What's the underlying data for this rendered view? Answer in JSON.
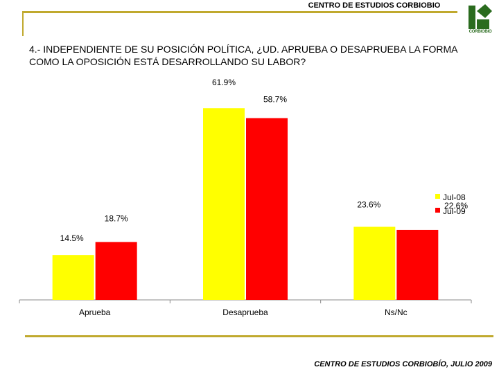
{
  "header": {
    "title": "CENTRO DE ESTUDIOS CORBIOBIO",
    "logo_text": "CORBIOBIO",
    "question": "4.- INDEPENDIENTE DE SU POSICIÓN POLÍTICA, ¿UD. APRUEBA O DESAPRUEBA LA FORMA COMO LA OPOSICIÓN ESTÁ DESARROLLANDO SU LABOR?"
  },
  "footer": {
    "text": "CENTRO DE ESTUDIOS CORBIOBÍO, JULIO 2009"
  },
  "colors": {
    "jul08": "#ffff00",
    "jul09": "#ff0000",
    "accent": "#c0a92e",
    "logo_green": "#2a6b1e"
  },
  "chart_data": {
    "type": "bar",
    "title": "",
    "xlabel": "",
    "ylabel": "",
    "categories": [
      "Aprueba",
      "Desaprueba",
      "Ns/Nc"
    ],
    "series": [
      {
        "name": "Jul-08",
        "values": [
          14.5,
          61.9,
          23.6
        ],
        "labels": [
          "14.5%",
          "61.9%",
          "23.6%"
        ]
      },
      {
        "name": "Jul-09",
        "values": [
          18.7,
          58.7,
          22.6
        ],
        "labels": [
          "18.7%",
          "58.7%",
          "22.6%"
        ]
      }
    ],
    "ylim": [
      0,
      70
    ],
    "grid": false,
    "legend": "right"
  }
}
